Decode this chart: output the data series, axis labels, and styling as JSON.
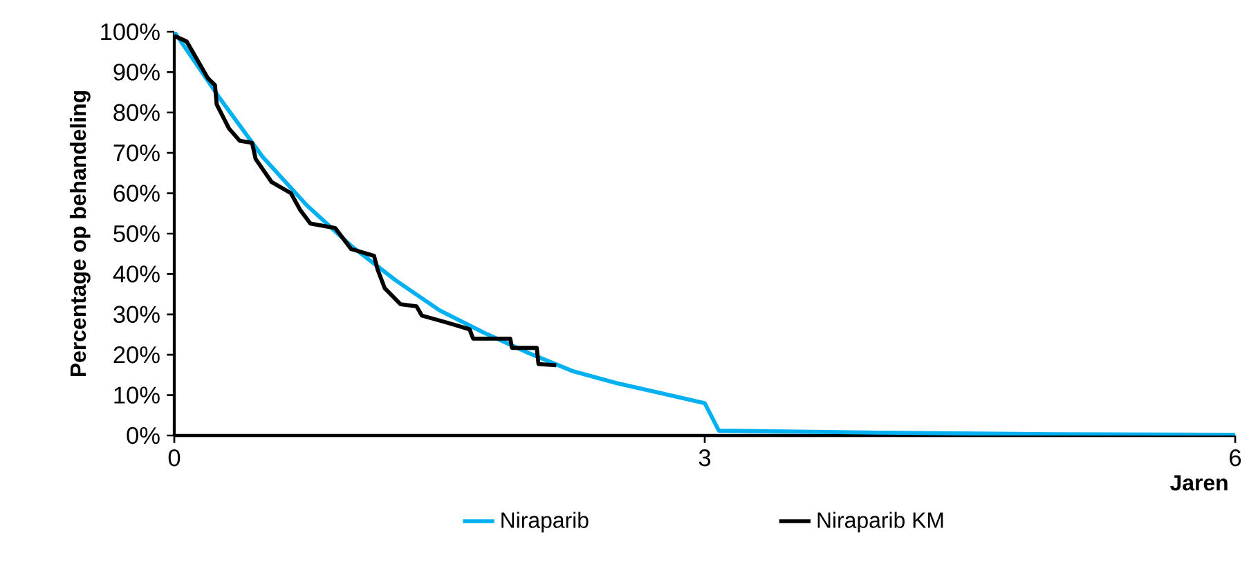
{
  "chart_data": {
    "type": "line",
    "xlabel": "Jaren",
    "ylabel": "Percentage op behandeling",
    "xlim": [
      0,
      6
    ],
    "xticks": [
      0,
      3,
      6
    ],
    "ylim": [
      0,
      100
    ],
    "yticks": [
      {
        "value": 0,
        "label": "0%"
      },
      {
        "value": 10,
        "label": "10%"
      },
      {
        "value": 20,
        "label": "20%"
      },
      {
        "value": 30,
        "label": "30%"
      },
      {
        "value": 40,
        "label": "40%"
      },
      {
        "value": 50,
        "label": "50%"
      },
      {
        "value": 60,
        "label": "60%"
      },
      {
        "value": 70,
        "label": "70%"
      },
      {
        "value": 80,
        "label": "80%"
      },
      {
        "value": 90,
        "label": "90%"
      },
      {
        "value": 100,
        "label": "100%"
      }
    ],
    "grid": false,
    "legend": "bottom",
    "series": [
      {
        "name": "Niraparib",
        "color": "#00b0f0",
        "x": [
          0,
          0.25,
          0.5,
          0.75,
          1,
          1.25,
          1.5,
          1.75,
          2,
          2.25,
          2.5,
          2.75,
          3,
          3.08,
          4,
          5,
          6
        ],
        "values": [
          100,
          84,
          69,
          57,
          47,
          38.5,
          31,
          25.5,
          20.5,
          16,
          13,
          10.5,
          8,
          1.2,
          0.7,
          0.3,
          0.2
        ]
      },
      {
        "name": "Niraparib KM",
        "color": "#000000",
        "x": [
          0,
          0.07,
          0.19,
          0.23,
          0.24,
          0.31,
          0.37,
          0.44,
          0.46,
          0.55,
          0.66,
          0.71,
          0.77,
          0.91,
          1.0,
          1.13,
          1.15,
          1.19,
          1.28,
          1.37,
          1.4,
          1.54,
          1.67,
          1.69,
          1.9,
          1.91,
          2.05,
          2.06,
          2.16
        ],
        "values": [
          99,
          97.6,
          88.5,
          86.8,
          82,
          76,
          73,
          72.5,
          68.5,
          62.8,
          60,
          56,
          52.5,
          51.4,
          46.2,
          44.5,
          41.1,
          36.5,
          32.5,
          32,
          29.7,
          28,
          26.3,
          24,
          24,
          21.7,
          21.7,
          17.7,
          17.4
        ]
      }
    ]
  }
}
